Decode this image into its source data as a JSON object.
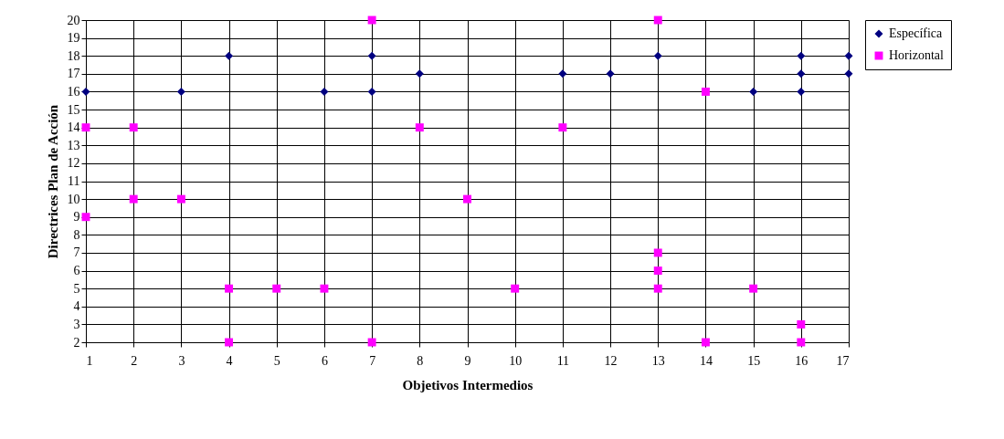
{
  "chart_data": {
    "type": "scatter",
    "xlabel": "Objetivos Intermedios",
    "ylabel": "Directrices Plan de Acción",
    "xlim": [
      1,
      17
    ],
    "xticks": [
      1,
      2,
      3,
      4,
      5,
      6,
      7,
      8,
      9,
      10,
      11,
      12,
      13,
      14,
      15,
      16,
      17
    ],
    "ylim": [
      2,
      20
    ],
    "yticks": [
      2,
      3,
      4,
      5,
      6,
      7,
      8,
      9,
      10,
      11,
      12,
      13,
      14,
      15,
      16,
      17,
      18,
      19,
      20
    ],
    "grid": true,
    "legend": "right",
    "series": [
      {
        "name": "Específica",
        "color": "#000080",
        "marker": "diamond",
        "x": [
          1,
          3,
          4,
          6,
          7,
          7,
          8,
          11,
          12,
          13,
          15,
          16,
          16,
          16,
          17,
          17
        ],
        "values": [
          16,
          16,
          18,
          16,
          18,
          16,
          17,
          17,
          17,
          18,
          16,
          18,
          17,
          16,
          18,
          17
        ]
      },
      {
        "name": "Horizontal",
        "color": "#ff00ff",
        "marker": "square",
        "x": [
          1,
          1,
          2,
          2,
          3,
          4,
          4,
          5,
          6,
          7,
          7,
          8,
          9,
          10,
          11,
          13,
          13,
          13,
          13,
          14,
          14,
          15,
          16,
          16
        ],
        "values": [
          14,
          9,
          14,
          10,
          10,
          5,
          2,
          5,
          5,
          20,
          2,
          14,
          10,
          5,
          14,
          20,
          7,
          6,
          5,
          16,
          2,
          5,
          3,
          2
        ]
      }
    ]
  }
}
